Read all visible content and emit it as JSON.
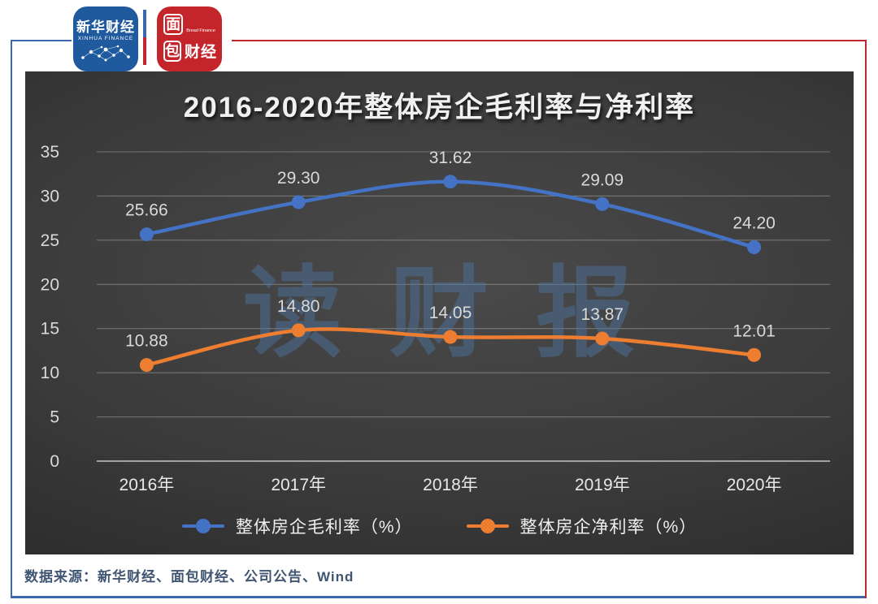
{
  "header": {
    "xinhua_logo": {
      "title": "新华财经",
      "subtitle": "XINHUA FINANCE"
    },
    "bread_logo": {
      "char1": "面",
      "char2": "包",
      "chars_right": "财经",
      "subtitle": "Bread Finance"
    }
  },
  "chart_data": {
    "type": "line",
    "title": "2016-2020年整体房企毛利率与净利率",
    "categories": [
      "2016年",
      "2017年",
      "2018年",
      "2019年",
      "2020年"
    ],
    "series": [
      {
        "name": "整体房企毛利率（%）",
        "color": "#4472C4",
        "values": [
          25.66,
          29.3,
          31.62,
          29.09,
          24.2
        ],
        "labels": [
          "25.66",
          "29.30",
          "31.62",
          "29.09",
          "24.20"
        ]
      },
      {
        "name": "整体房企净利率（%）",
        "color": "#ED7D31",
        "values": [
          10.88,
          14.8,
          14.05,
          13.87,
          12.01
        ],
        "labels": [
          "10.88",
          "14.80",
          "14.05",
          "13.87",
          "12.01"
        ]
      }
    ],
    "ylim": [
      0,
      35
    ],
    "yticks": [
      0,
      5,
      10,
      15,
      20,
      25,
      30,
      35
    ],
    "grid": true,
    "legend_position": "bottom",
    "watermark": "读财报"
  },
  "footer": {
    "source": "数据来源：新华财经、面包财经、公司公告、Wind"
  },
  "colors": {
    "frame_blue": "#3a67ad",
    "frame_red": "#c0272d",
    "xinhua_blue": "#1f5a9e",
    "bread_red": "#c4252b",
    "chart_bg_center": "#4a4a4a",
    "chart_bg_mid": "#3a3a3a",
    "chart_bg_edge": "#242424",
    "grid_line": "#d9d9d9",
    "axis_text": "#d9d9d9",
    "xtick_text": "#e8e8e8",
    "title_text": "#f0f0f0",
    "watermark_color": "#4e76a6",
    "source_text": "#3f5572"
  }
}
